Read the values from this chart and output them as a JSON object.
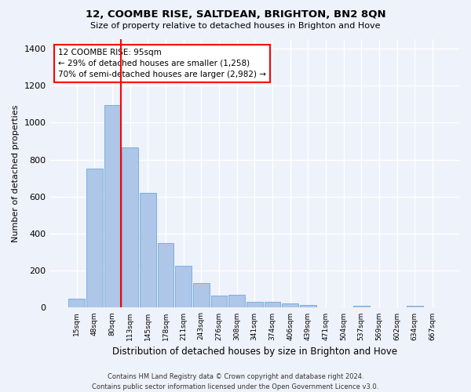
{
  "title": "12, COOMBE RISE, SALTDEAN, BRIGHTON, BN2 8QN",
  "subtitle": "Size of property relative to detached houses in Brighton and Hove",
  "xlabel": "Distribution of detached houses by size in Brighton and Hove",
  "ylabel": "Number of detached properties",
  "footer1": "Contains HM Land Registry data © Crown copyright and database right 2024.",
  "footer2": "Contains public sector information licensed under the Open Government Licence v3.0.",
  "categories": [
    "15sqm",
    "48sqm",
    "80sqm",
    "113sqm",
    "145sqm",
    "178sqm",
    "211sqm",
    "243sqm",
    "276sqm",
    "308sqm",
    "341sqm",
    "374sqm",
    "406sqm",
    "439sqm",
    "471sqm",
    "504sqm",
    "537sqm",
    "569sqm",
    "602sqm",
    "634sqm",
    "667sqm"
  ],
  "values": [
    50,
    750,
    1095,
    865,
    620,
    350,
    225,
    135,
    65,
    70,
    32,
    30,
    22,
    14,
    0,
    0,
    12,
    0,
    0,
    12,
    0
  ],
  "bar_color": "#aec6e8",
  "bar_edge_color": "#5a9fd4",
  "marker_label": "12 COOMBE RISE: 95sqm",
  "annotation_line1": "← 29% of detached houses are smaller (1,258)",
  "annotation_line2": "70% of semi-detached houses are larger (2,982) →",
  "annotation_box_color": "white",
  "annotation_box_edge": "red",
  "vline_color": "red",
  "vline_x": 2.48,
  "background_color": "#eef2fa",
  "grid_color": "white",
  "ylim": [
    0,
    1450
  ],
  "yticks": [
    0,
    200,
    400,
    600,
    800,
    1000,
    1200,
    1400
  ]
}
